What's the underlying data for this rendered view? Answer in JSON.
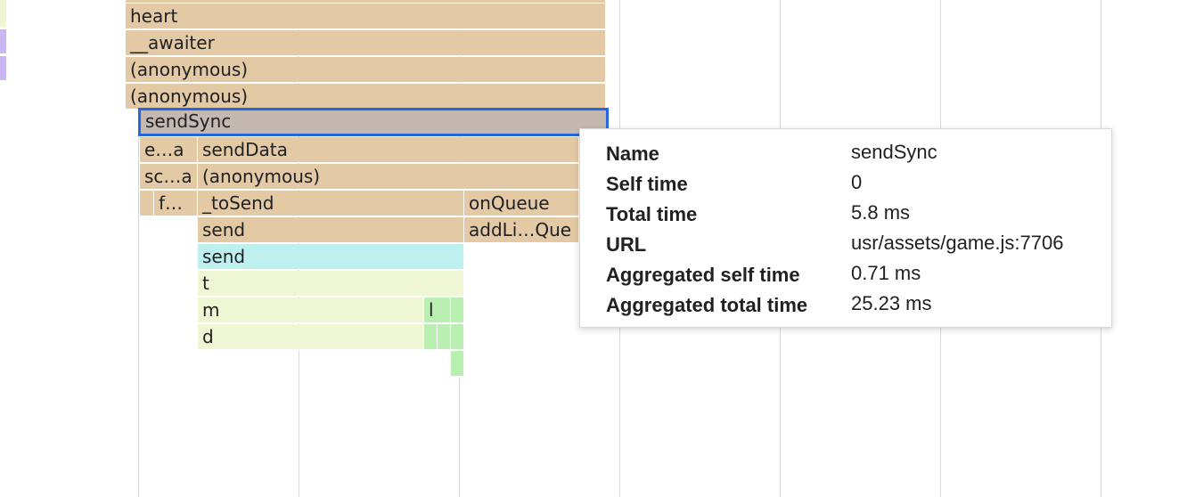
{
  "flame": {
    "frames": {
      "heart": "heart",
      "awaiter": "__awaiter",
      "anon1": "(anonymous)",
      "anon2": "(anonymous)",
      "sendSync": "sendSync",
      "ea": "e…a",
      "sendData": "sendData",
      "sca": "sc…a",
      "anon3": "(anonymous)",
      "f": "f…",
      "toSend": "_toSend",
      "onQueue": "onQueue",
      "send1": "send",
      "addLiQue": "addLi…Que",
      "send2": "send",
      "t": "t",
      "m": "m",
      "l": "l",
      "d": "d"
    },
    "colors": {
      "js": "#e4c9a5",
      "selected": "#c5b8b0",
      "selected_border": "#2168e1",
      "network": "#bdf0ef",
      "lib": "#eef6d3",
      "leaf": "#b9efb0",
      "stripe_lime": "#eef6d3",
      "stripe_purple": "#c9b6f2"
    }
  },
  "tooltip": {
    "rows": [
      {
        "label": "Name",
        "value": "sendSync"
      },
      {
        "label": "Self time",
        "value": "0"
      },
      {
        "label": "Total time",
        "value": "5.8 ms"
      },
      {
        "label": "URL",
        "value": "usr/assets/game.js:7706"
      },
      {
        "label": "Aggregated self time",
        "value": "0.71 ms"
      },
      {
        "label": "Aggregated total time",
        "value": "25.23 ms"
      }
    ]
  }
}
